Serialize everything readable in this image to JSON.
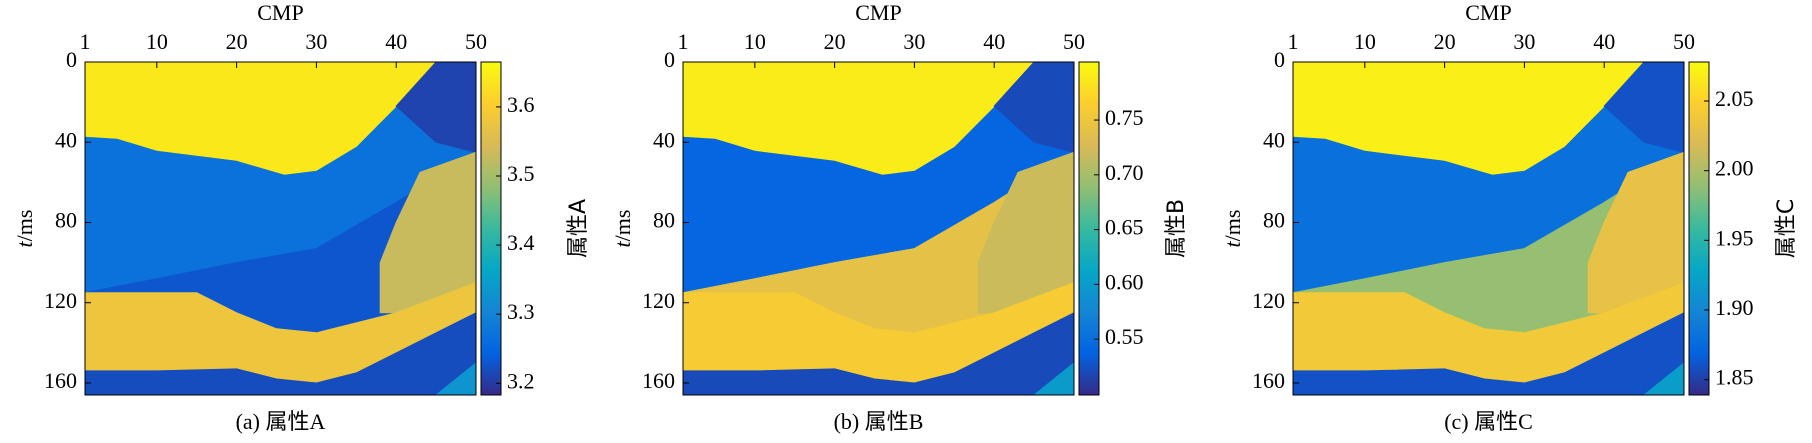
{
  "colormap": [
    "#352a87",
    "#0363e1",
    "#1485d4",
    "#06a7c6",
    "#38b99e",
    "#92bf73",
    "#d9ba56",
    "#fcce2e",
    "#f9fb0e"
  ],
  "layers": [
    {
      "cmp": [
        1,
        50,
        50,
        1
      ],
      "t": [
        0,
        0,
        166,
        166
      ]
    },
    {
      "cmp": [
        1,
        45,
        40,
        35,
        30,
        26,
        20,
        10,
        5,
        1
      ],
      "t": [
        0,
        0,
        22,
        42,
        54,
        56,
        49,
        44,
        38,
        37
      ]
    },
    {
      "cmp": [
        45,
        50,
        50,
        45,
        40
      ],
      "t": [
        0,
        0,
        45,
        40,
        22
      ]
    },
    {
      "cmp": [
        1,
        10,
        20,
        30,
        40,
        50,
        50,
        40,
        30,
        25,
        20,
        15,
        10,
        1
      ],
      "t": [
        115,
        108,
        100,
        93,
        70,
        45,
        110,
        125,
        135,
        133,
        125,
        117,
        115,
        115
      ]
    },
    {
      "cmp": [
        43,
        50,
        50,
        40,
        38,
        38,
        40
      ],
      "t": [
        55,
        45,
        110,
        125,
        125,
        100,
        80
      ]
    },
    {
      "cmp": [
        1,
        15,
        20,
        25,
        30,
        40,
        50,
        50,
        45,
        40,
        35,
        30,
        25,
        20,
        10,
        1
      ],
      "t": [
        115,
        115,
        125,
        133,
        135,
        125,
        110,
        125,
        135,
        145,
        155,
        160,
        158,
        153,
        154,
        154
      ]
    },
    {
      "cmp": [
        1,
        10,
        20,
        25,
        30,
        35,
        40,
        45,
        50,
        50,
        1
      ],
      "t": [
        154,
        154,
        153,
        158,
        160,
        155,
        145,
        135,
        125,
        166,
        166
      ]
    },
    {
      "cmp": [
        45,
        50,
        50
      ],
      "t": [
        166,
        150,
        166
      ]
    }
  ],
  "chart_data": [
    {
      "type": "heatmap",
      "xlabel": "CMP",
      "ylabel": {
        "var": "t",
        "unit": "/ms"
      },
      "caption": "(a) 属性A",
      "colorbar_label": "属性A",
      "xlim": [
        1,
        50
      ],
      "xticks": [
        1,
        10,
        20,
        30,
        40,
        50
      ],
      "ylim": [
        0,
        166
      ],
      "yticks": [
        0,
        40,
        80,
        120,
        160
      ],
      "y_inverted": true,
      "clim": [
        3.183,
        3.665
      ],
      "cticks": [
        {
          "value": 3.2,
          "label": "3.2"
        },
        {
          "value": 3.3,
          "label": "3.3"
        },
        {
          "value": 3.4,
          "label": "3.4"
        },
        {
          "value": 3.5,
          "label": "3.5"
        },
        {
          "value": 3.6,
          "label": "3.6"
        }
      ],
      "layer_values": [
        3.27,
        3.64,
        3.21,
        3.23,
        3.53,
        3.58,
        3.22,
        3.33
      ]
    },
    {
      "type": "heatmap",
      "xlabel": "CMP",
      "ylabel": {
        "var": "t",
        "unit": "/ms"
      },
      "caption": "(b) 属性B",
      "colorbar_label": "属性B",
      "xlim": [
        1,
        50
      ],
      "xticks": [
        1,
        10,
        20,
        30,
        40,
        50
      ],
      "ylim": [
        0,
        166
      ],
      "yticks": [
        0,
        40,
        80,
        120,
        160
      ],
      "y_inverted": true,
      "clim": [
        0.499,
        0.803
      ],
      "cticks": [
        0.55,
        {
          "value": 0.6,
          "label": "0.60"
        },
        0.65,
        {
          "value": 0.7,
          "label": "0.70"
        },
        0.75
      ],
      "layer_values": [
        0.54,
        0.79,
        0.52,
        0.74,
        0.72,
        0.76,
        0.52,
        0.6
      ]
    },
    {
      "type": "heatmap",
      "xlabel": "CMP",
      "ylabel": {
        "var": "t",
        "unit": "/ms"
      },
      "caption": "(c) 属性C",
      "colorbar_label": "属性C",
      "xlim": [
        1,
        50
      ],
      "xticks": [
        1,
        10,
        20,
        30,
        40,
        50
      ],
      "ylim": [
        0,
        166
      ],
      "yticks": [
        0,
        40,
        80,
        120,
        160
      ],
      "y_inverted": true,
      "clim": [
        1.839,
        2.078
      ],
      "cticks": [
        1.85,
        {
          "value": 1.9,
          "label": "1.90"
        },
        1.95,
        {
          "value": 2.0,
          "label": "2.00"
        },
        2.05
      ],
      "layer_values": [
        1.88,
        2.07,
        1.86,
        1.99,
        2.03,
        2.04,
        1.86,
        1.92
      ]
    }
  ]
}
